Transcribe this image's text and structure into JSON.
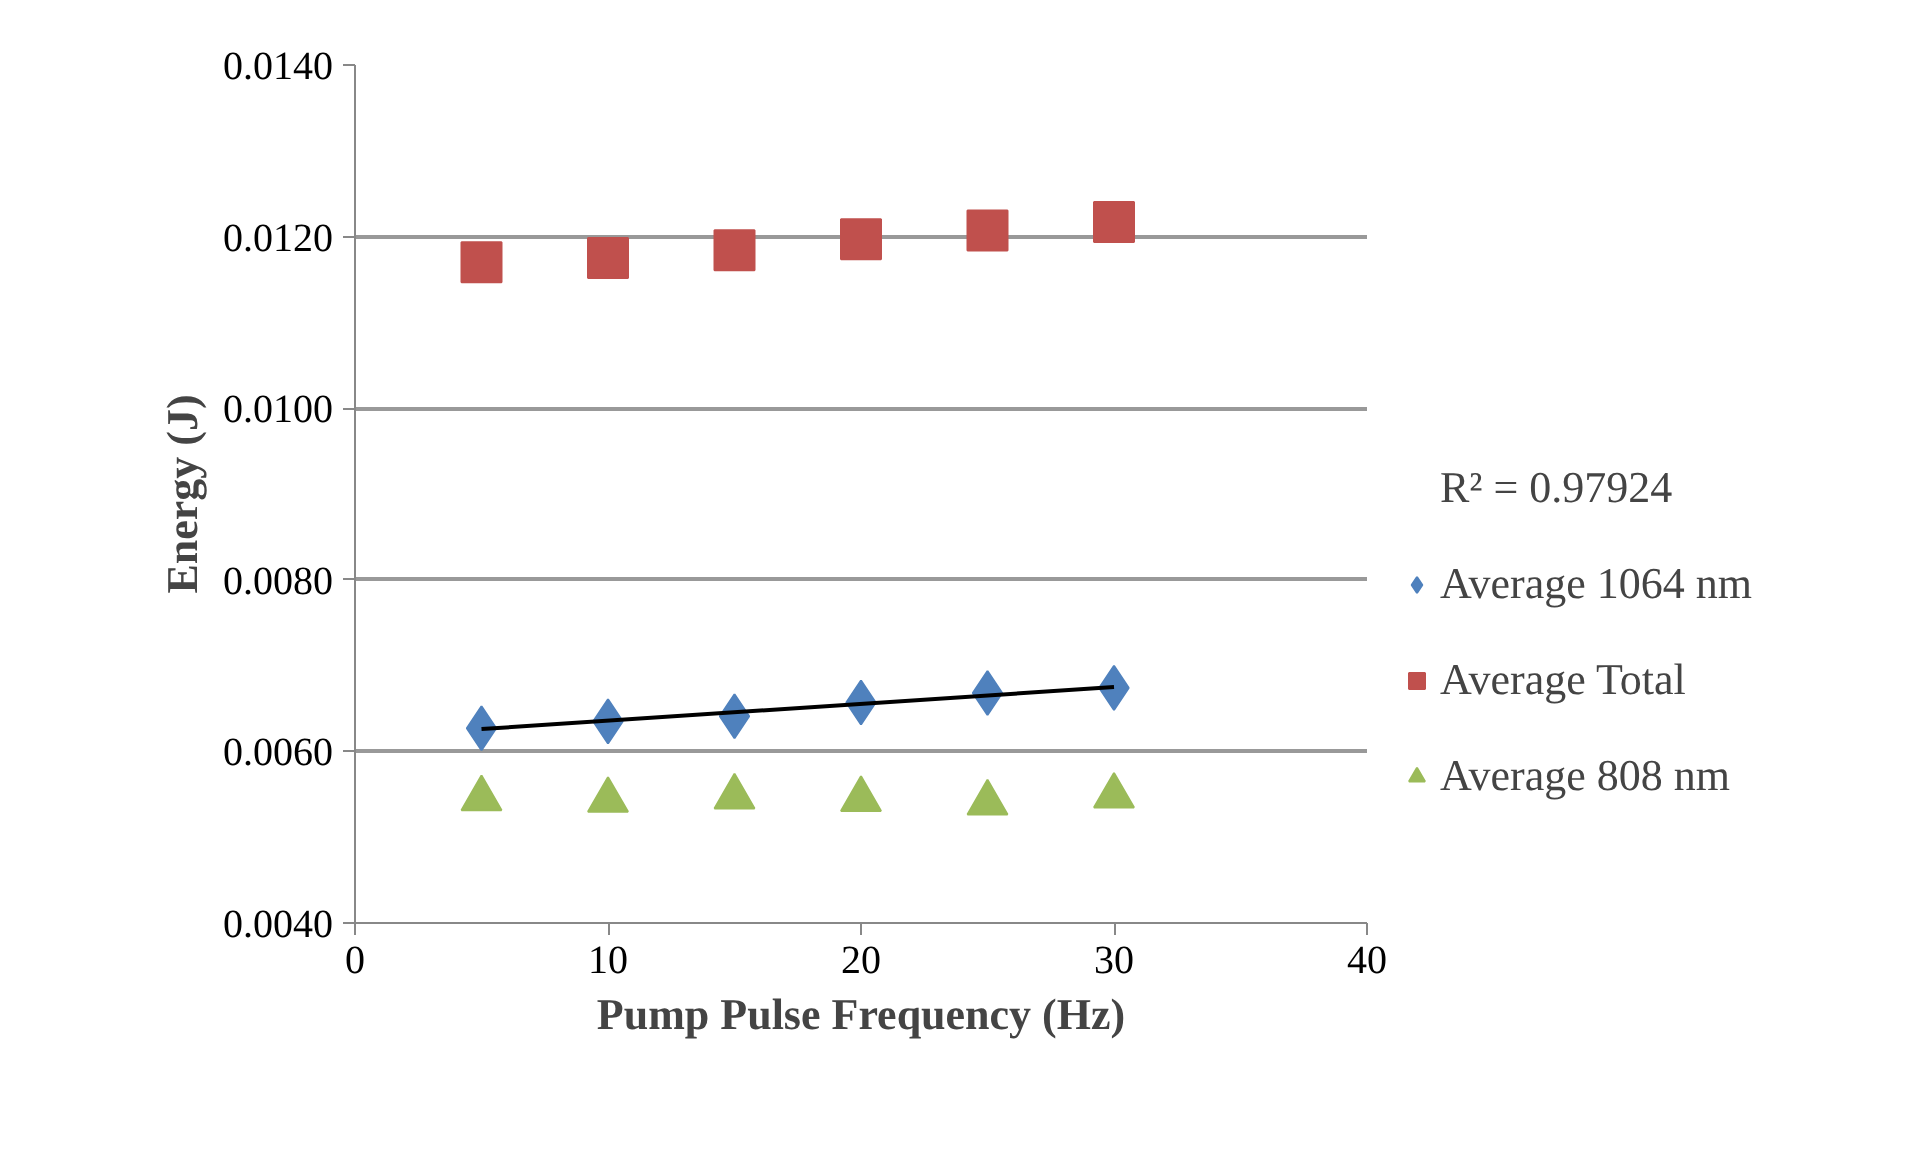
{
  "chart_data": {
    "type": "scatter",
    "xlabel": "Pump Pulse Frequency (Hz)",
    "ylabel": "Energy (J)",
    "xlim": [
      0,
      40
    ],
    "xticks": [
      0,
      10,
      20,
      30,
      40
    ],
    "ylim": [
      0.004,
      0.014
    ],
    "yticks": [
      {
        "value": 0.004,
        "label": "0.0040"
      },
      {
        "value": 0.006,
        "label": "0.0060"
      },
      {
        "value": 0.008,
        "label": "0.0080"
      },
      {
        "value": 0.01,
        "label": "0.0100"
      },
      {
        "value": 0.012,
        "label": "0.0120"
      },
      {
        "value": 0.014,
        "label": "0.0140"
      }
    ],
    "grid": "y",
    "legend": "right",
    "annotations": [
      "R² = 0.97924"
    ],
    "x": [
      5,
      10,
      15,
      20,
      25,
      30
    ],
    "series": [
      {
        "name": "Average 1064 nm",
        "color": "#4f81bd",
        "marker": "diamond",
        "values": [
          0.00627,
          0.00635,
          0.00641,
          0.00657,
          0.00668,
          0.00674
        ]
      },
      {
        "name": "Average Total",
        "color": "#c0504d",
        "marker": "square",
        "values": [
          0.0117,
          0.01175,
          0.01184,
          0.01197,
          0.01207,
          0.01217
        ]
      },
      {
        "name": "Average 808 nm",
        "color": "#9bbb59",
        "marker": "triangle",
        "values": [
          0.00545,
          0.00543,
          0.00547,
          0.00544,
          0.0054,
          0.00548
        ]
      },
      {
        "type": "line",
        "color": "#000000",
        "marker": "none",
        "line_style": "solid",
        "x": [
          5,
          30
        ],
        "values": [
          0.00626,
          0.00675
        ]
      }
    ]
  }
}
